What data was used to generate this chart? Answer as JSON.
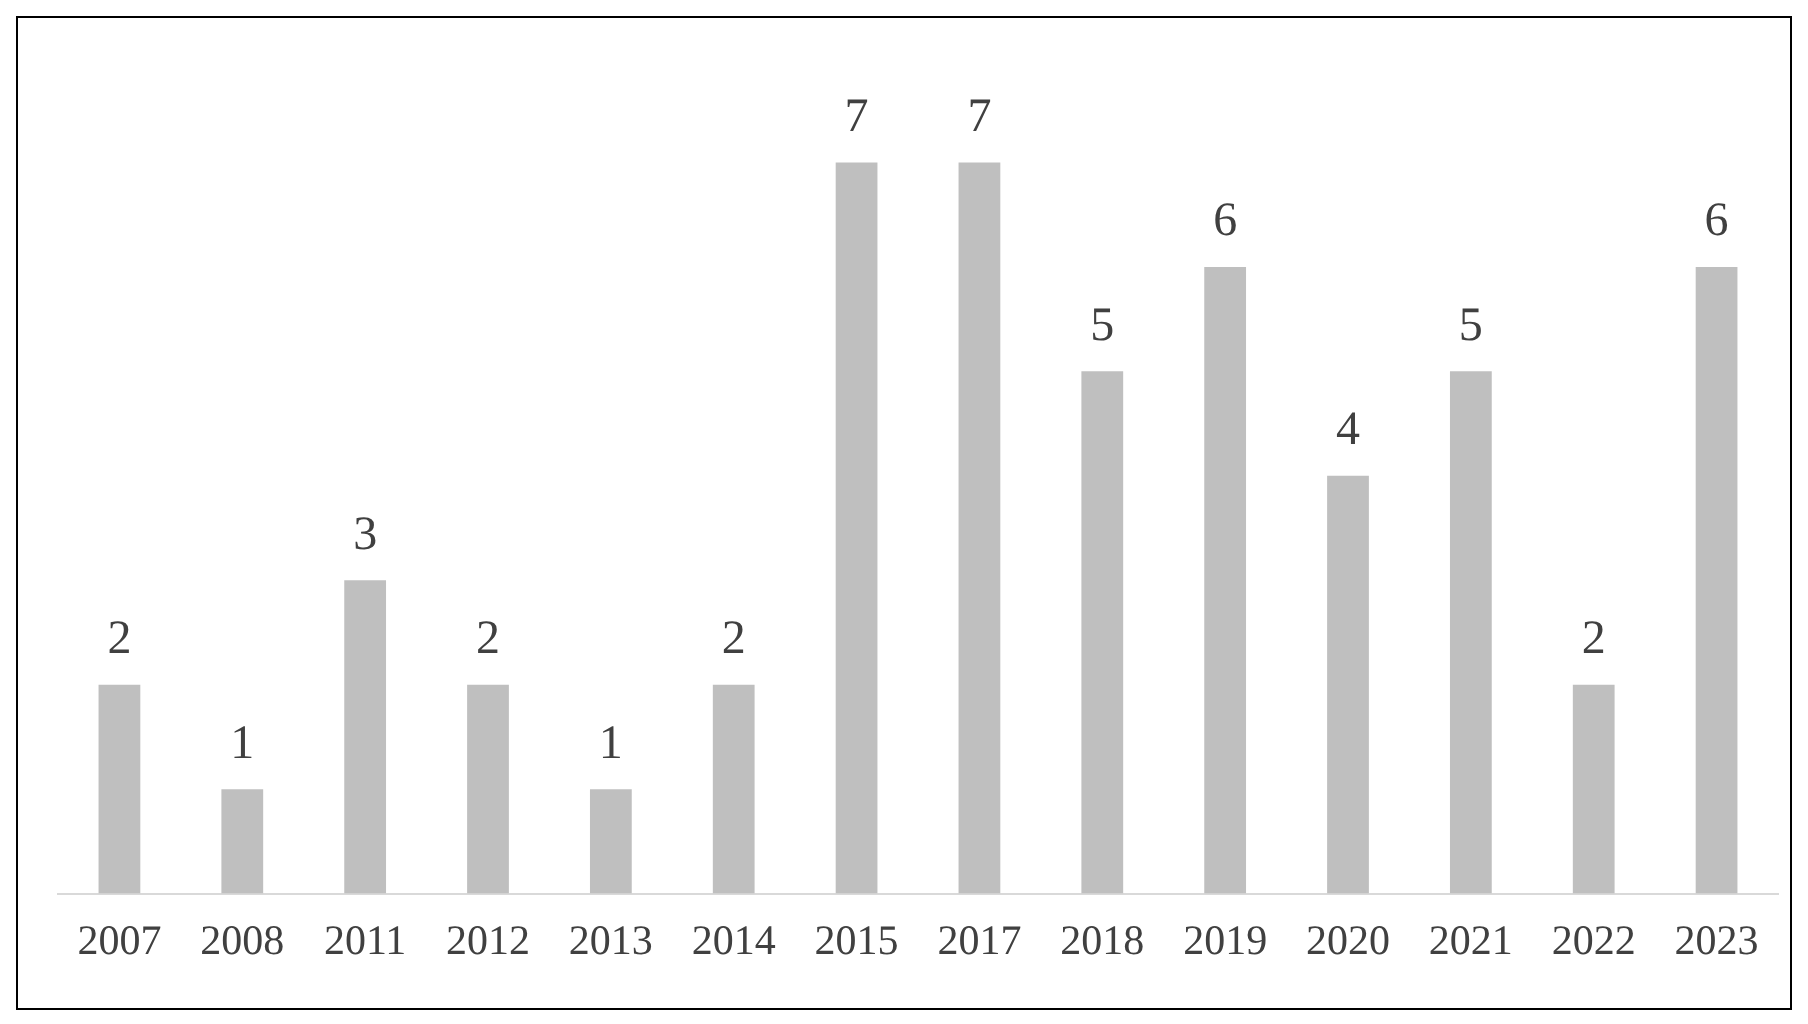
{
  "chart_data": {
    "type": "bar",
    "categories": [
      "2007",
      "2008",
      "2011",
      "2012",
      "2013",
      "2014",
      "2015",
      "2017",
      "2018",
      "2019",
      "2020",
      "2021",
      "2022",
      "2023"
    ],
    "values": [
      2,
      1,
      3,
      2,
      1,
      2,
      7,
      7,
      5,
      6,
      4,
      5,
      2,
      6
    ],
    "color": "#bfbfbf",
    "data_labels": true,
    "grid": false,
    "legend": false
  }
}
